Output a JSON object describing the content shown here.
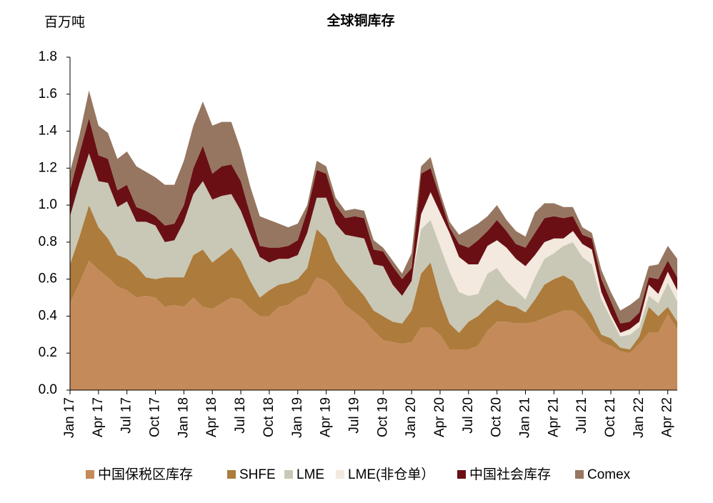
{
  "chart_data": {
    "type": "stacked_area",
    "title": "全球铜库存",
    "y_axis_label": "百万吨",
    "categories": [
      "Jan 17",
      null,
      null,
      "Apr 17",
      null,
      null,
      "Jul 17",
      null,
      null,
      "Oct 17",
      null,
      null,
      "Jan 18",
      null,
      null,
      "Apr 18",
      null,
      null,
      "Jul 18",
      null,
      null,
      "Oct 18",
      null,
      null,
      "Jan 19",
      null,
      null,
      "Apr 19",
      null,
      null,
      "Jul 19",
      null,
      null,
      "Oct 19",
      null,
      null,
      "Jan 20",
      null,
      null,
      "Apr 20",
      null,
      null,
      "Jul 20",
      null,
      null,
      "Oct 20",
      null,
      null,
      "Jan 21",
      null,
      null,
      "Apr 21",
      null,
      null,
      "Jul 21",
      null,
      null,
      "Oct 21",
      null,
      null,
      "Jan 22",
      null,
      null,
      "Apr 22",
      null
    ],
    "series": [
      {
        "name": "中国保税区库存",
        "color": "#c58a5a",
        "values": [
          0.47,
          0.58,
          0.7,
          0.65,
          0.61,
          0.56,
          0.54,
          0.5,
          0.51,
          0.5,
          0.45,
          0.46,
          0.45,
          0.5,
          0.45,
          0.44,
          0.47,
          0.5,
          0.49,
          0.44,
          0.4,
          0.4,
          0.45,
          0.46,
          0.5,
          0.52,
          0.61,
          0.59,
          0.54,
          0.46,
          0.42,
          0.38,
          0.32,
          0.27,
          0.26,
          0.25,
          0.26,
          0.34,
          0.34,
          0.3,
          0.22,
          0.22,
          0.22,
          0.24,
          0.32,
          0.37,
          0.37,
          0.36,
          0.36,
          0.37,
          0.39,
          0.41,
          0.43,
          0.43,
          0.39,
          0.32,
          0.26,
          0.24,
          0.21,
          0.2,
          0.25,
          0.31,
          0.31,
          0.41,
          0.33
        ]
      },
      {
        "name": "SHFE",
        "color": "#ad7b3c",
        "values": [
          0.21,
          0.25,
          0.3,
          0.23,
          0.21,
          0.17,
          0.17,
          0.17,
          0.1,
          0.1,
          0.16,
          0.15,
          0.16,
          0.23,
          0.31,
          0.25,
          0.26,
          0.27,
          0.21,
          0.15,
          0.1,
          0.14,
          0.12,
          0.12,
          0.1,
          0.14,
          0.26,
          0.23,
          0.16,
          0.17,
          0.15,
          0.13,
          0.11,
          0.13,
          0.11,
          0.11,
          0.17,
          0.29,
          0.35,
          0.2,
          0.14,
          0.09,
          0.15,
          0.16,
          0.13,
          0.12,
          0.09,
          0.09,
          0.06,
          0.12,
          0.18,
          0.19,
          0.19,
          0.16,
          0.1,
          0.09,
          0.04,
          0.04,
          0.02,
          0.02,
          0.04,
          0.14,
          0.09,
          0.04,
          0.04
        ]
      },
      {
        "name": "LME",
        "color": "#c9c8b6",
        "values": [
          0.26,
          0.29,
          0.28,
          0.25,
          0.3,
          0.26,
          0.31,
          0.24,
          0.3,
          0.29,
          0.19,
          0.2,
          0.3,
          0.33,
          0.37,
          0.34,
          0.32,
          0.29,
          0.27,
          0.25,
          0.22,
          0.15,
          0.14,
          0.13,
          0.13,
          0.19,
          0.17,
          0.22,
          0.2,
          0.21,
          0.26,
          0.31,
          0.25,
          0.27,
          0.2,
          0.15,
          0.16,
          0.24,
          0.23,
          0.28,
          0.28,
          0.22,
          0.14,
          0.12,
          0.18,
          0.17,
          0.13,
          0.09,
          0.07,
          0.12,
          0.14,
          0.14,
          0.16,
          0.21,
          0.23,
          0.27,
          0.19,
          0.11,
          0.06,
          0.08,
          0.05,
          0.06,
          0.07,
          0.13,
          0.11
        ]
      },
      {
        "name": "LME(非仓单）",
        "color": "#f3e9de",
        "values": [
          0,
          0,
          0,
          0,
          0,
          0,
          0,
          0,
          0,
          0,
          0,
          0,
          0,
          0,
          0,
          0,
          0,
          0,
          0,
          0,
          0,
          0,
          0,
          0,
          0,
          0,
          0,
          0,
          0,
          0,
          0,
          0,
          0,
          0,
          0,
          0,
          0,
          0.08,
          0.15,
          0.18,
          0.21,
          0.19,
          0.17,
          0.16,
          0.15,
          0.15,
          0.18,
          0.17,
          0.18,
          0.12,
          0.09,
          0.08,
          0.04,
          0.06,
          0.07,
          0.08,
          0.04,
          0.02,
          0.02,
          0.03,
          0.03,
          0.06,
          0.05,
          0.06,
          0.06
        ]
      },
      {
        "name": "中国社会库存",
        "color": "#6a1014",
        "values": [
          0.14,
          0.16,
          0.19,
          0.14,
          0.13,
          0.09,
          0.09,
          0.08,
          0.06,
          0.05,
          0.09,
          0.09,
          0.09,
          0.14,
          0.19,
          0.14,
          0.16,
          0.16,
          0.16,
          0.11,
          0.06,
          0.08,
          0.06,
          0.07,
          0.08,
          0.12,
          0.15,
          0.13,
          0.1,
          0.09,
          0.11,
          0.11,
          0.08,
          0.08,
          0.1,
          0.09,
          0.07,
          0.22,
          0.13,
          0.08,
          0.03,
          0.07,
          0.09,
          0.13,
          0.08,
          0.11,
          0.09,
          0.08,
          0.1,
          0.12,
          0.13,
          0.12,
          0.11,
          0.08,
          0.05,
          0.06,
          0.07,
          0.07,
          0.05,
          0.04,
          0.05,
          0.04,
          0.08,
          0.06,
          0.07
        ]
      },
      {
        "name": "Comex",
        "color": "#967661",
        "values": [
          0.1,
          0.1,
          0.15,
          0.16,
          0.14,
          0.17,
          0.18,
          0.22,
          0.21,
          0.21,
          0.22,
          0.21,
          0.24,
          0.23,
          0.24,
          0.26,
          0.24,
          0.23,
          0.17,
          0.15,
          0.16,
          0.15,
          0.13,
          0.1,
          0.09,
          0.03,
          0.05,
          0.04,
          0.04,
          0.04,
          0.04,
          0.04,
          0.05,
          0.02,
          0.03,
          0.03,
          0.08,
          0.04,
          0.06,
          0.03,
          0.03,
          0.05,
          0.1,
          0.09,
          0.08,
          0.08,
          0.06,
          0.07,
          0.06,
          0.11,
          0.08,
          0.07,
          0.06,
          0.05,
          0.04,
          0.03,
          0.05,
          0.05,
          0.07,
          0.09,
          0.08,
          0.06,
          0.08,
          0.08,
          0.1
        ]
      }
    ],
    "ylim": [
      0,
      1.8
    ],
    "yticks": [
      {
        "value": 0,
        "label": "0.0"
      },
      0.2,
      0.4,
      0.6,
      0.8,
      {
        "value": 1,
        "label": "1.0"
      },
      1.2,
      1.4,
      1.6,
      1.8
    ],
    "grid": false
  }
}
